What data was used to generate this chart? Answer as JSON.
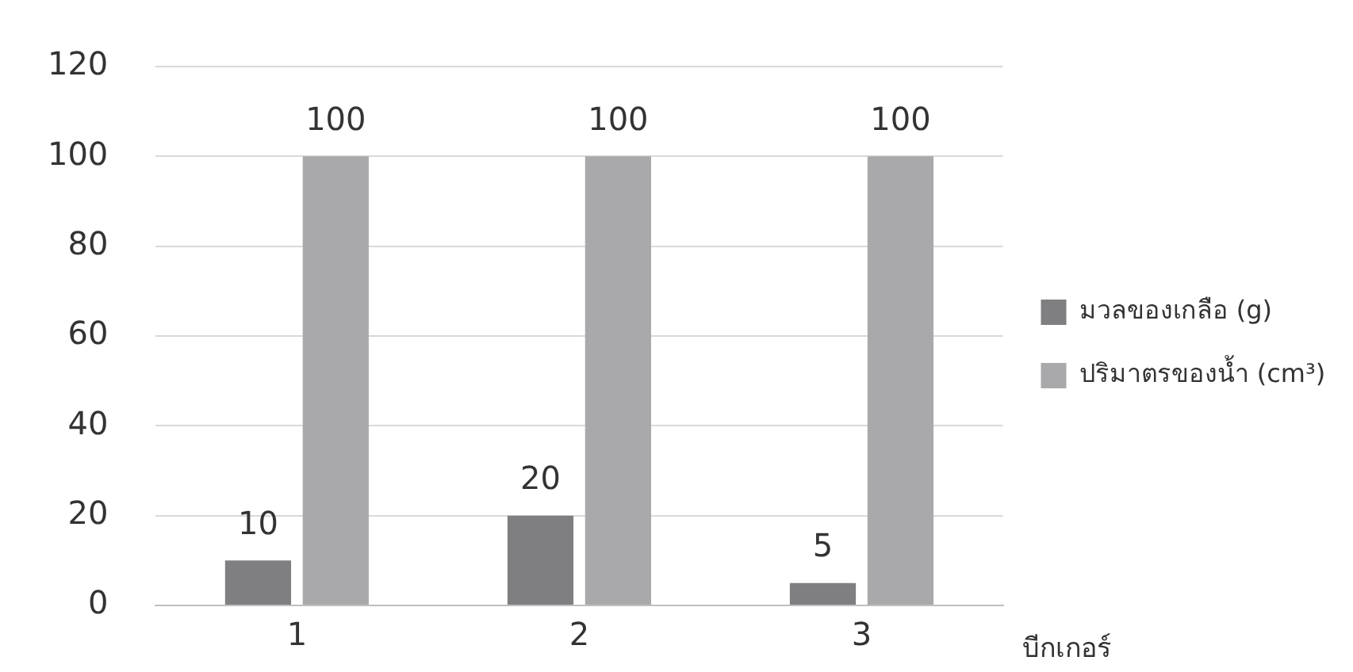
{
  "chart_data": {
    "type": "bar",
    "xlabel": "บีกเกอร์",
    "categories": [
      "1",
      "2",
      "3"
    ],
    "series": [
      {
        "name": "มวลของเกลือ (g)",
        "color": "#7f7f82",
        "values": [
          10,
          20,
          5
        ]
      },
      {
        "name": "ปริมาตรของน้ำ (cm³)",
        "color": "#a9a9ab",
        "values": [
          100,
          100,
          100
        ]
      }
    ],
    "ylim": [
      0,
      120
    ],
    "yticks": [
      0,
      20,
      40,
      60,
      80,
      100,
      120
    ],
    "grid": "y",
    "legend": "right",
    "data_labels": true
  }
}
